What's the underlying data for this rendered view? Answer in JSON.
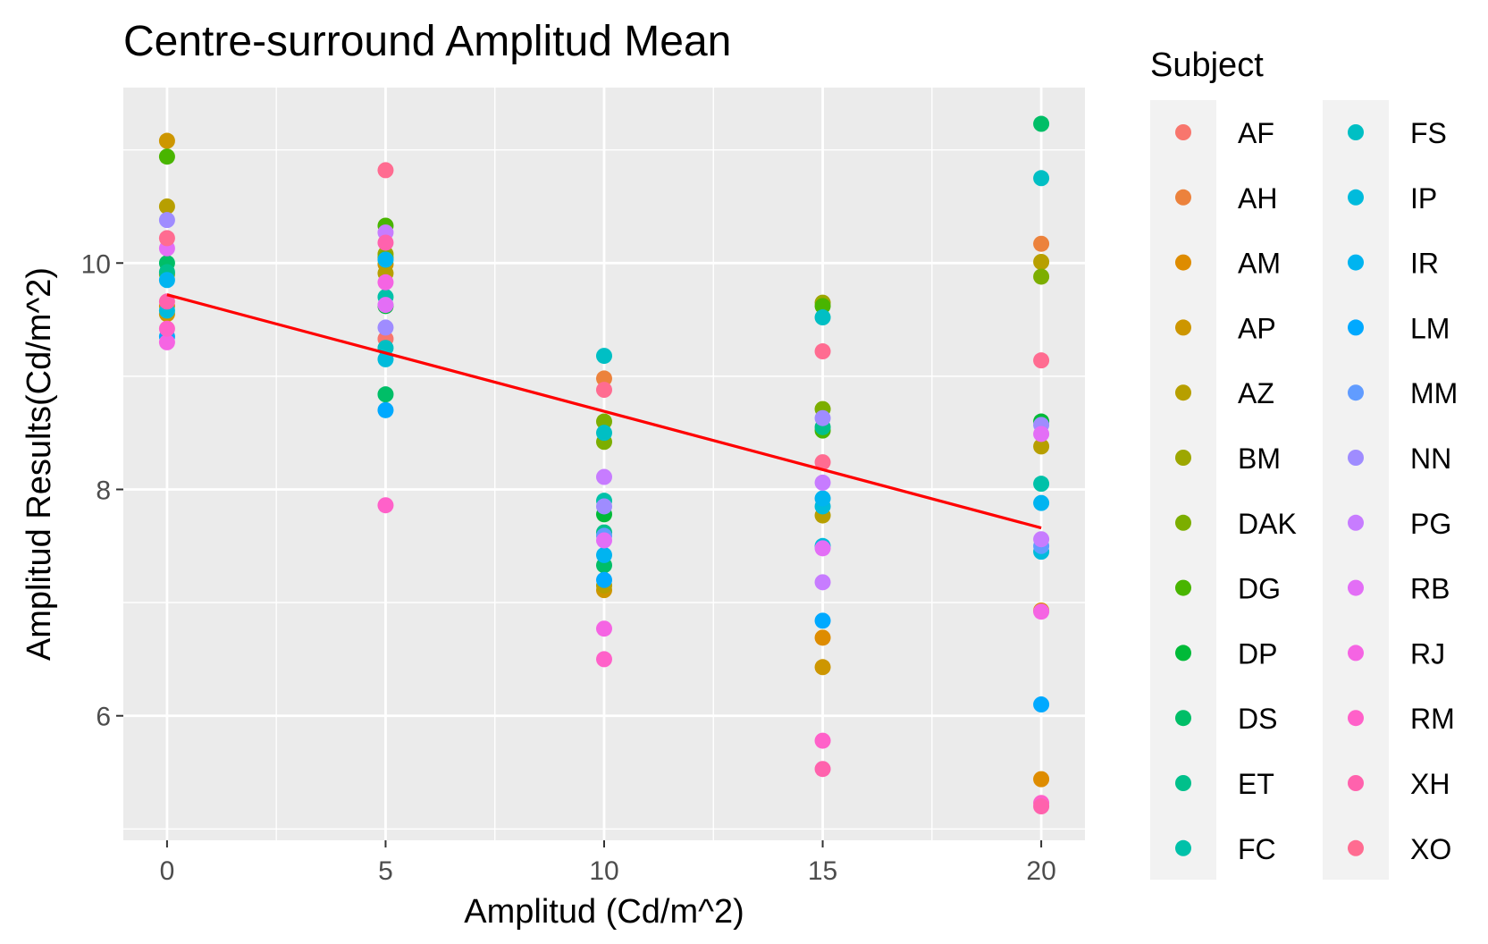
{
  "chart_data": {
    "type": "scatter",
    "title": "Centre-surround Amplitud Mean",
    "xlabel": "Amplitud (Cd/m^2)",
    "ylabel": "Amplitud Results(Cd/m^2)",
    "xlim": [
      -1,
      21
    ],
    "ylim": [
      4.9,
      11.55
    ],
    "x_ticks": [
      0,
      5,
      10,
      15,
      20
    ],
    "y_ticks": [
      6,
      8,
      10
    ],
    "grid": true,
    "legend": {
      "title": "Subject",
      "placement": "right",
      "columns": 2
    },
    "series": [
      {
        "name": "AF",
        "color": "#F8766D",
        "points": [
          [
            5,
            9.33
          ]
        ]
      },
      {
        "name": "AH",
        "color": "#EC823C",
        "points": [
          [
            10,
            8.98
          ],
          [
            20,
            10.17
          ]
        ]
      },
      {
        "name": "AM",
        "color": "#DE8C00",
        "points": [
          [
            0,
            9.62
          ],
          [
            15,
            6.69
          ],
          [
            20,
            6.93
          ],
          [
            20,
            5.44
          ]
        ]
      },
      {
        "name": "AP",
        "color": "#CD9600",
        "points": [
          [
            0,
            11.08
          ],
          [
            0,
            9.55
          ],
          [
            5,
            9.99
          ],
          [
            10,
            7.11
          ],
          [
            15,
            6.43
          ]
        ]
      },
      {
        "name": "AZ",
        "color": "#B79F00",
        "points": [
          [
            0,
            10.5
          ],
          [
            5,
            9.91
          ],
          [
            10,
            7.15
          ],
          [
            15,
            7.77
          ],
          [
            20,
            10.01
          ],
          [
            20,
            8.38
          ]
        ]
      },
      {
        "name": "BM",
        "color": "#9DA700",
        "points": [
          [
            0,
            9.9
          ],
          [
            5,
            10.08
          ],
          [
            15,
            9.65
          ]
        ]
      },
      {
        "name": "DAK",
        "color": "#7CAE00",
        "points": [
          [
            5,
            10.05
          ],
          [
            10,
            8.6
          ],
          [
            10,
            8.42
          ],
          [
            15,
            8.71
          ],
          [
            20,
            9.88
          ]
        ]
      },
      {
        "name": "DG",
        "color": "#49B500",
        "points": [
          [
            0,
            10.94
          ],
          [
            5,
            10.33
          ],
          [
            15,
            9.62
          ],
          [
            15,
            8.52
          ]
        ]
      },
      {
        "name": "DP",
        "color": "#00BA38",
        "points": [
          [
            5,
            9.62
          ],
          [
            10,
            7.78
          ],
          [
            20,
            8.6
          ]
        ]
      },
      {
        "name": "DS",
        "color": "#00BE67",
        "points": [
          [
            0,
            10.0
          ],
          [
            5,
            8.84
          ],
          [
            10,
            7.33
          ],
          [
            20,
            11.23
          ]
        ]
      },
      {
        "name": "ET",
        "color": "#00C08B",
        "points": [
          [
            0,
            9.92
          ],
          [
            10,
            7.62
          ],
          [
            15,
            8.55
          ]
        ]
      },
      {
        "name": "FC",
        "color": "#00C1A9",
        "points": [
          [
            5,
            9.7
          ],
          [
            10,
            7.9
          ],
          [
            20,
            8.05
          ]
        ]
      },
      {
        "name": "FS",
        "color": "#00BFC4",
        "points": [
          [
            5,
            9.25
          ],
          [
            10,
            9.18
          ],
          [
            10,
            8.5
          ],
          [
            15,
            9.52
          ],
          [
            20,
            10.75
          ]
        ]
      },
      {
        "name": "IP",
        "color": "#00BBDC",
        "points": [
          [
            0,
            9.58
          ],
          [
            5,
            9.15
          ],
          [
            15,
            7.85
          ],
          [
            15,
            7.5
          ],
          [
            20,
            7.45
          ]
        ]
      },
      {
        "name": "IR",
        "color": "#00B4F0",
        "points": [
          [
            0,
            9.85
          ],
          [
            5,
            10.03
          ],
          [
            10,
            7.42
          ],
          [
            15,
            7.92
          ],
          [
            20,
            7.88
          ]
        ]
      },
      {
        "name": "LM",
        "color": "#00A9FF",
        "points": [
          [
            0,
            9.35
          ],
          [
            5,
            8.7
          ],
          [
            10,
            7.2
          ],
          [
            15,
            6.84
          ],
          [
            20,
            6.1
          ]
        ]
      },
      {
        "name": "MM",
        "color": "#619CFF",
        "points": [
          [
            10,
            7.59
          ],
          [
            20,
            7.5
          ]
        ]
      },
      {
        "name": "NN",
        "color": "#9F8CFF",
        "points": [
          [
            0,
            10.38
          ],
          [
            5,
            9.43
          ],
          [
            10,
            7.85
          ],
          [
            15,
            8.63
          ],
          [
            20,
            8.57
          ]
        ]
      },
      {
        "name": "PG",
        "color": "#C77CFF",
        "points": [
          [
            5,
            10.27
          ],
          [
            10,
            8.11
          ],
          [
            15,
            8.06
          ],
          [
            15,
            7.18
          ],
          [
            20,
            7.56
          ]
        ]
      },
      {
        "name": "RB",
        "color": "#E36EF6",
        "points": [
          [
            0,
            10.13
          ],
          [
            5,
            9.63
          ],
          [
            10,
            7.55
          ],
          [
            15,
            7.48
          ],
          [
            20,
            8.49
          ]
        ]
      },
      {
        "name": "RJ",
        "color": "#F564E3",
        "points": [
          [
            0,
            9.3
          ],
          [
            5,
            9.83
          ],
          [
            10,
            6.77
          ],
          [
            20,
            6.92
          ]
        ]
      },
      {
        "name": "RM",
        "color": "#FF61C9",
        "points": [
          [
            0,
            9.42
          ],
          [
            5,
            7.86
          ],
          [
            10,
            6.5
          ],
          [
            15,
            5.78
          ],
          [
            20,
            5.23
          ]
        ]
      },
      {
        "name": "XH",
        "color": "#FF62AD",
        "points": [
          [
            0,
            9.66
          ],
          [
            5,
            10.18
          ],
          [
            15,
            5.53
          ],
          [
            20,
            5.2
          ]
        ]
      },
      {
        "name": "XO",
        "color": "#FF6C91",
        "points": [
          [
            0,
            10.22
          ],
          [
            5,
            10.82
          ],
          [
            10,
            8.88
          ],
          [
            15,
            9.22
          ],
          [
            15,
            8.24
          ],
          [
            20,
            9.14
          ]
        ]
      }
    ],
    "trend_line": {
      "color": "#FF0000",
      "x": [
        0,
        20
      ],
      "y": [
        9.72,
        7.66
      ]
    }
  }
}
